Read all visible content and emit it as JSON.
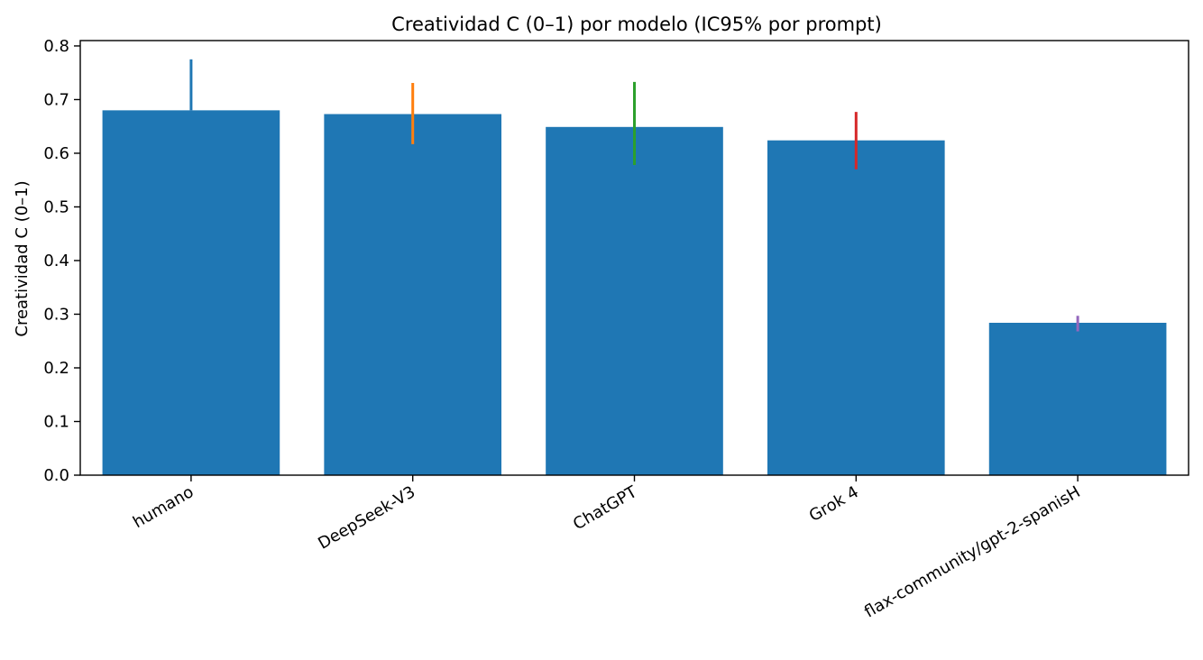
{
  "chart_data": {
    "type": "bar",
    "title": "Creatividad C (0–1) por modelo (IC95% por prompt)",
    "xlabel": "",
    "ylabel": "Creatividad C (0–1)",
    "ylim": [
      0,
      0.81
    ],
    "yticks": [
      0.0,
      0.1,
      0.2,
      0.3,
      0.4,
      0.5,
      0.6,
      0.7,
      0.8
    ],
    "ytick_labels": [
      "0.0",
      "0.1",
      "0.2",
      "0.3",
      "0.4",
      "0.5",
      "0.6",
      "0.7",
      "0.8"
    ],
    "categories": [
      "humano",
      "DeepSeek-V3",
      "ChatGPT",
      "Grok 4",
      "flax-community/gpt-2-spanisH"
    ],
    "values": [
      0.68,
      0.673,
      0.649,
      0.624,
      0.284
    ],
    "ci_low": [
      0.68,
      0.617,
      0.578,
      0.57,
      0.268
    ],
    "ci_high": [
      0.775,
      0.731,
      0.733,
      0.677,
      0.297
    ],
    "bar_color": "#1f77b4",
    "error_colors": [
      "#1f77b4",
      "#ff7f0e",
      "#2ca02c",
      "#d62728",
      "#9467bd"
    ],
    "grid": false,
    "legend": "none"
  }
}
